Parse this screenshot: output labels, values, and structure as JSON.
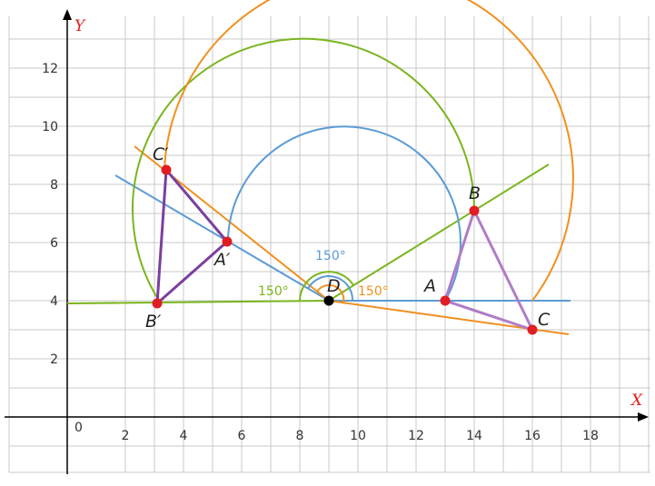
{
  "axes": {
    "x_label": "X",
    "y_label": "Y",
    "origin_label": "0",
    "x_ticks": [
      "2",
      "4",
      "6",
      "8",
      "10",
      "12",
      "14",
      "16",
      "18"
    ],
    "y_ticks": [
      "2",
      "4",
      "6",
      "8",
      "10",
      "12"
    ],
    "grid": true
  },
  "colors": {
    "grid": "#c8c8c8",
    "axis": "#000000",
    "blue": "#5b9bd5",
    "green": "#7ab51d",
    "orange": "#f0901e",
    "triangle_original": "#b07cc6",
    "triangle_image": "#7b3f9e",
    "point": "#e11d23",
    "center": "#000000"
  },
  "points": {
    "A": {
      "label": "A",
      "x": 13,
      "y": 4
    },
    "B": {
      "label": "B",
      "x": 14,
      "y": 7.1
    },
    "C": {
      "label": "C",
      "x": 16,
      "y": 3
    },
    "D": {
      "label": "D",
      "x": 9,
      "y": 4
    },
    "A_prime": {
      "label": "A′",
      "x": 5.5,
      "y": 6.15
    },
    "B_prime": {
      "label": "B′",
      "x": 3.1,
      "y": 3.9
    },
    "C_prime": {
      "label": "C′",
      "x": 3.4,
      "y": 8.4
    }
  },
  "angles": {
    "blue": "150°",
    "green": "150°",
    "orange": "150°"
  }
}
